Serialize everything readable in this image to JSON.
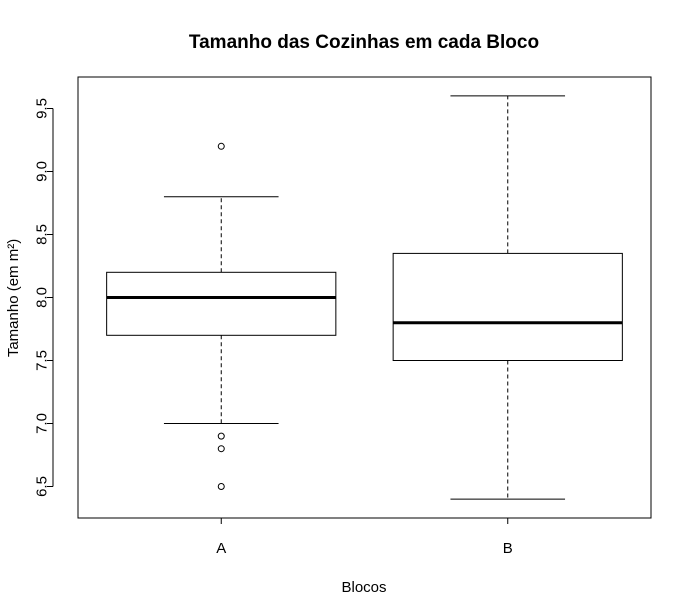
{
  "chart_data": {
    "type": "boxplot",
    "title": "Tamanho das Cozinhas em cada Bloco",
    "xlabel": "Blocos",
    "ylabel": "Tamanho (em m²)",
    "categories": [
      "A",
      "B"
    ],
    "ylim": [
      6.25,
      9.75
    ],
    "yticks": [
      "6.5",
      "7.0",
      "7.5",
      "8.0",
      "8.5",
      "9.0",
      "9.5"
    ],
    "boxes": [
      {
        "category": "A",
        "whisker_low": 7.0,
        "q1": 7.7,
        "median": 8.0,
        "q3": 8.2,
        "whisker_high": 8.8,
        "outliers": [
          9.2,
          6.9,
          6.8,
          6.5
        ]
      },
      {
        "category": "B",
        "whisker_low": 6.4,
        "q1": 7.5,
        "median": 7.8,
        "q3": 8.35,
        "whisker_high": 9.6,
        "outliers": []
      }
    ],
    "grid": false,
    "legend": "none",
    "colors": {
      "line": "#000000",
      "box_fill": "#ffffff",
      "background": "#ffffff"
    }
  }
}
